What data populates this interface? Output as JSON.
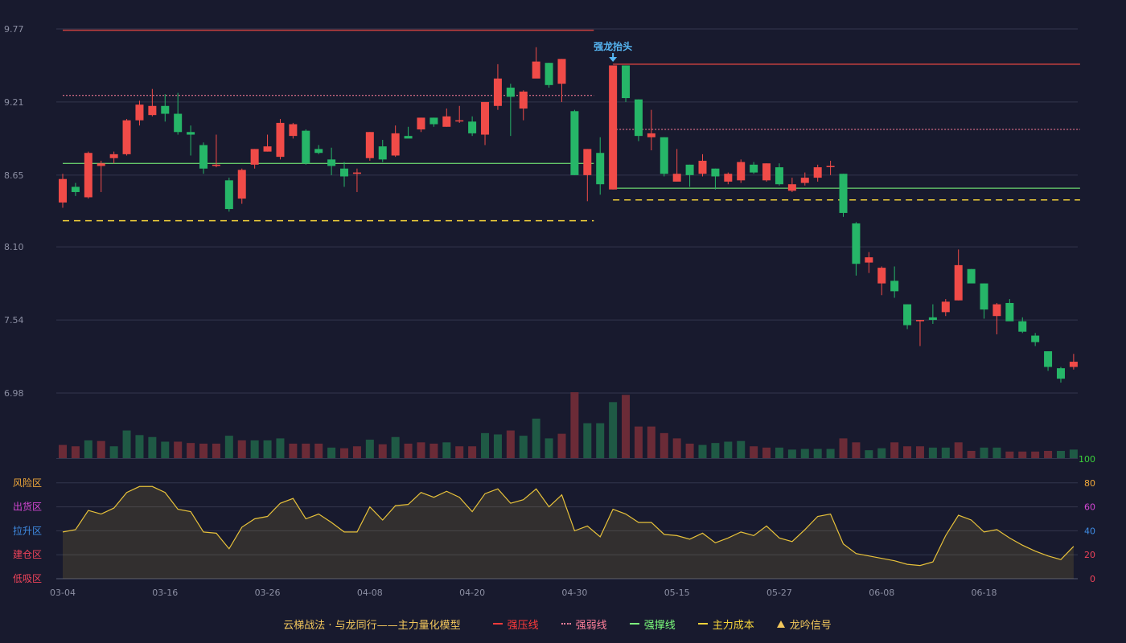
{
  "chart_data": {
    "type": "candlestick",
    "x_ticks": [
      "03-04",
      "03-16",
      "03-26",
      "04-08",
      "04-20",
      "04-30",
      "05-15",
      "05-27",
      "06-08",
      "06-18"
    ],
    "price_ticks": [
      "9.77",
      "9.21",
      "8.65",
      "8.10",
      "7.54",
      "6.98"
    ],
    "price_range": [
      6.98,
      9.77
    ],
    "annotation": "强龙抬头",
    "candles": [
      [
        8.44,
        8.62,
        8.4,
        8.66
      ],
      [
        8.56,
        8.52,
        8.49,
        8.59
      ],
      [
        8.48,
        8.82,
        8.47,
        8.83
      ],
      [
        8.72,
        8.74,
        8.52,
        8.76
      ],
      [
        8.78,
        8.81,
        8.74,
        8.83
      ],
      [
        8.81,
        9.07,
        8.8,
        9.08
      ],
      [
        9.07,
        9.19,
        9.03,
        9.22
      ],
      [
        9.11,
        9.18,
        9.1,
        9.31
      ],
      [
        9.18,
        9.12,
        9.06,
        9.27
      ],
      [
        9.12,
        8.98,
        8.96,
        9.28
      ],
      [
        8.98,
        8.96,
        8.8,
        9.03
      ],
      [
        8.88,
        8.7,
        8.66,
        8.9
      ],
      [
        8.72,
        8.73,
        8.71,
        8.96
      ],
      [
        8.61,
        8.39,
        8.37,
        8.63
      ],
      [
        8.47,
        8.69,
        8.43,
        8.7
      ],
      [
        8.73,
        8.85,
        8.7,
        8.85
      ],
      [
        8.83,
        8.87,
        8.83,
        8.96
      ],
      [
        8.79,
        9.05,
        8.77,
        9.08
      ],
      [
        8.95,
        9.04,
        8.93,
        9.05
      ],
      [
        8.99,
        8.74,
        8.73,
        9.0
      ],
      [
        8.85,
        8.82,
        8.81,
        8.88
      ],
      [
        8.77,
        8.72,
        8.65,
        8.86
      ],
      [
        8.7,
        8.64,
        8.56,
        8.75
      ],
      [
        8.66,
        8.67,
        8.52,
        8.7
      ],
      [
        8.78,
        8.98,
        8.76,
        8.98
      ],
      [
        8.87,
        8.77,
        8.75,
        8.92
      ],
      [
        8.8,
        8.97,
        8.79,
        9.03
      ],
      [
        8.95,
        8.93,
        8.94,
        9.02
      ],
      [
        9.0,
        9.09,
        8.98,
        9.09
      ],
      [
        9.09,
        9.04,
        9.02,
        9.09
      ],
      [
        9.02,
        9.1,
        9.02,
        9.16
      ],
      [
        9.07,
        9.07,
        9.05,
        9.18
      ],
      [
        9.06,
        8.97,
        8.95,
        9.1
      ],
      [
        8.96,
        9.21,
        8.88,
        9.21
      ],
      [
        9.18,
        9.39,
        9.15,
        9.5
      ],
      [
        9.32,
        9.25,
        8.95,
        9.35
      ],
      [
        9.16,
        9.29,
        9.07,
        9.3
      ],
      [
        9.39,
        9.52,
        9.41,
        9.63
      ],
      [
        9.51,
        9.34,
        9.32,
        9.51
      ],
      [
        9.35,
        9.54,
        9.21,
        9.54
      ],
      [
        9.14,
        8.65,
        8.65,
        9.15
      ],
      [
        8.65,
        8.85,
        8.45,
        8.85
      ],
      [
        8.82,
        8.58,
        8.5,
        8.94
      ],
      [
        8.54,
        9.49,
        8.54,
        9.49
      ],
      [
        9.49,
        9.24,
        9.21,
        9.49
      ],
      [
        9.23,
        8.95,
        8.91,
        9.23
      ],
      [
        8.94,
        8.97,
        8.84,
        9.15
      ],
      [
        8.94,
        8.66,
        8.64,
        8.94
      ],
      [
        8.6,
        8.66,
        8.6,
        8.85
      ],
      [
        8.73,
        8.65,
        8.56,
        8.73
      ],
      [
        8.66,
        8.76,
        8.64,
        8.81
      ],
      [
        8.7,
        8.64,
        8.54,
        8.7
      ],
      [
        8.6,
        8.66,
        8.58,
        8.67
      ],
      [
        8.61,
        8.75,
        8.59,
        8.77
      ],
      [
        8.73,
        8.67,
        8.66,
        8.75
      ],
      [
        8.61,
        8.74,
        8.6,
        8.74
      ],
      [
        8.71,
        8.58,
        8.57,
        8.74
      ],
      [
        8.53,
        8.58,
        8.52,
        8.63
      ],
      [
        8.59,
        8.63,
        8.57,
        8.67
      ],
      [
        8.63,
        8.71,
        8.6,
        8.73
      ],
      [
        8.72,
        8.72,
        8.65,
        8.76
      ],
      [
        8.66,
        8.36,
        8.33,
        8.66
      ],
      [
        8.28,
        7.97,
        7.88,
        8.29
      ],
      [
        7.98,
        8.02,
        7.9,
        8.06
      ],
      [
        7.82,
        7.94,
        7.73,
        7.95
      ],
      [
        7.84,
        7.76,
        7.71,
        7.95
      ],
      [
        7.66,
        7.5,
        7.47,
        7.66
      ],
      [
        7.53,
        7.54,
        7.34,
        7.54
      ],
      [
        7.56,
        7.54,
        7.51,
        7.66
      ],
      [
        7.6,
        7.68,
        7.57,
        7.7
      ],
      [
        7.69,
        7.96,
        7.69,
        8.08
      ],
      [
        7.93,
        7.82,
        7.83,
        7.93
      ],
      [
        7.82,
        7.62,
        7.55,
        7.82
      ],
      [
        7.57,
        7.66,
        7.43,
        7.67
      ],
      [
        7.67,
        7.53,
        7.54,
        7.7
      ],
      [
        7.53,
        7.45,
        7.44,
        7.56
      ],
      [
        7.42,
        7.37,
        7.34,
        7.44
      ],
      [
        7.3,
        7.18,
        7.15,
        7.3
      ],
      [
        7.17,
        7.09,
        7.06,
        7.18
      ],
      [
        7.18,
        7.22,
        7.16,
        7.28
      ]
    ],
    "strong_pressure_lines": [
      {
        "start": 0,
        "end": 41,
        "price": 9.76
      },
      {
        "start": 43,
        "end": 79,
        "price": 9.5
      }
    ],
    "weak_lines": [
      {
        "start": 0,
        "end": 41,
        "price": 9.26
      },
      {
        "start": 43,
        "end": 79,
        "price": 9.0
      }
    ],
    "support_lines": [
      {
        "start": 0,
        "end": 41,
        "price": 8.74
      },
      {
        "start": 43,
        "end": 79,
        "price": 8.55
      }
    ],
    "main_cost_lines": [
      {
        "start": 0,
        "end": 41,
        "price": 8.3
      },
      {
        "start": 43,
        "end": 79,
        "price": 8.46
      }
    ],
    "volume": [
      20,
      18,
      27,
      26,
      18,
      42,
      35,
      32,
      25,
      25,
      23,
      22,
      22,
      34,
      27,
      27,
      27,
      30,
      22,
      22,
      22,
      16,
      15,
      18,
      28,
      21,
      32,
      22,
      24,
      22,
      24,
      18,
      18,
      38,
      36,
      42,
      34,
      60,
      30,
      37,
      100,
      53,
      53,
      85,
      96,
      48,
      48,
      38,
      30,
      22,
      20,
      23,
      25,
      26,
      18,
      16,
      16,
      13,
      14,
      14,
      14,
      30,
      24,
      12,
      15,
      24,
      18,
      18,
      16,
      16,
      24,
      11,
      16,
      16,
      10,
      10,
      10,
      11,
      11,
      13
    ],
    "volume_up": [
      true,
      true,
      false,
      true,
      false,
      false,
      false,
      false,
      false,
      true,
      true,
      true,
      true,
      false,
      true,
      false,
      false,
      false,
      true,
      true,
      true,
      false,
      true,
      true,
      false,
      true,
      false,
      true,
      true,
      true,
      false,
      true,
      true,
      false,
      false,
      true,
      false,
      false,
      false,
      true,
      true,
      false,
      false,
      false,
      true,
      true,
      true,
      true,
      true,
      true,
      false,
      false,
      false,
      false,
      true,
      true,
      false,
      false,
      false,
      false,
      false,
      true,
      true,
      false,
      false,
      true,
      true,
      true,
      false,
      false,
      true,
      true,
      false,
      false,
      true,
      true,
      true,
      true,
      false,
      false
    ],
    "indicator": {
      "range": [
        0,
        100
      ],
      "right_ticks": [
        "100",
        "80",
        "60",
        "40",
        "20",
        "0"
      ],
      "zones": [
        "风险区",
        "出货区",
        "拉升区",
        "建仓区",
        "低吸区"
      ],
      "values": [
        39,
        41,
        57,
        54,
        59,
        72,
        77,
        77,
        72,
        58,
        56,
        39,
        38,
        25,
        43,
        50,
        52,
        63,
        67,
        50,
        54,
        47,
        39,
        39,
        60,
        49,
        61,
        62,
        72,
        68,
        73,
        68,
        56,
        71,
        75,
        63,
        66,
        75,
        60,
        70,
        40,
        44,
        35,
        58,
        54,
        47,
        47,
        37,
        36,
        33,
        38,
        30,
        34,
        39,
        36,
        44,
        34,
        31,
        41,
        52,
        54,
        29,
        21,
        19,
        17,
        15,
        12,
        11,
        14,
        36,
        53,
        49,
        39,
        41,
        34,
        28,
        23,
        19,
        16,
        27
      ]
    },
    "legend": {
      "brand": "云梯战法 · 与龙同行——主力量化模型",
      "items": [
        {
          "label": "强压线",
          "color": "#ff3b3b",
          "style": "solid"
        },
        {
          "label": "强弱线",
          "color": "#ff7f9a",
          "style": "dotted"
        },
        {
          "label": "强撑线",
          "color": "#7dff7d",
          "style": "solid"
        },
        {
          "label": "主力成本",
          "color": "#f5d33a",
          "style": "dashed"
        },
        {
          "label": "龙吟信号",
          "color": "#f2c75c",
          "style": "triangle"
        }
      ]
    }
  }
}
